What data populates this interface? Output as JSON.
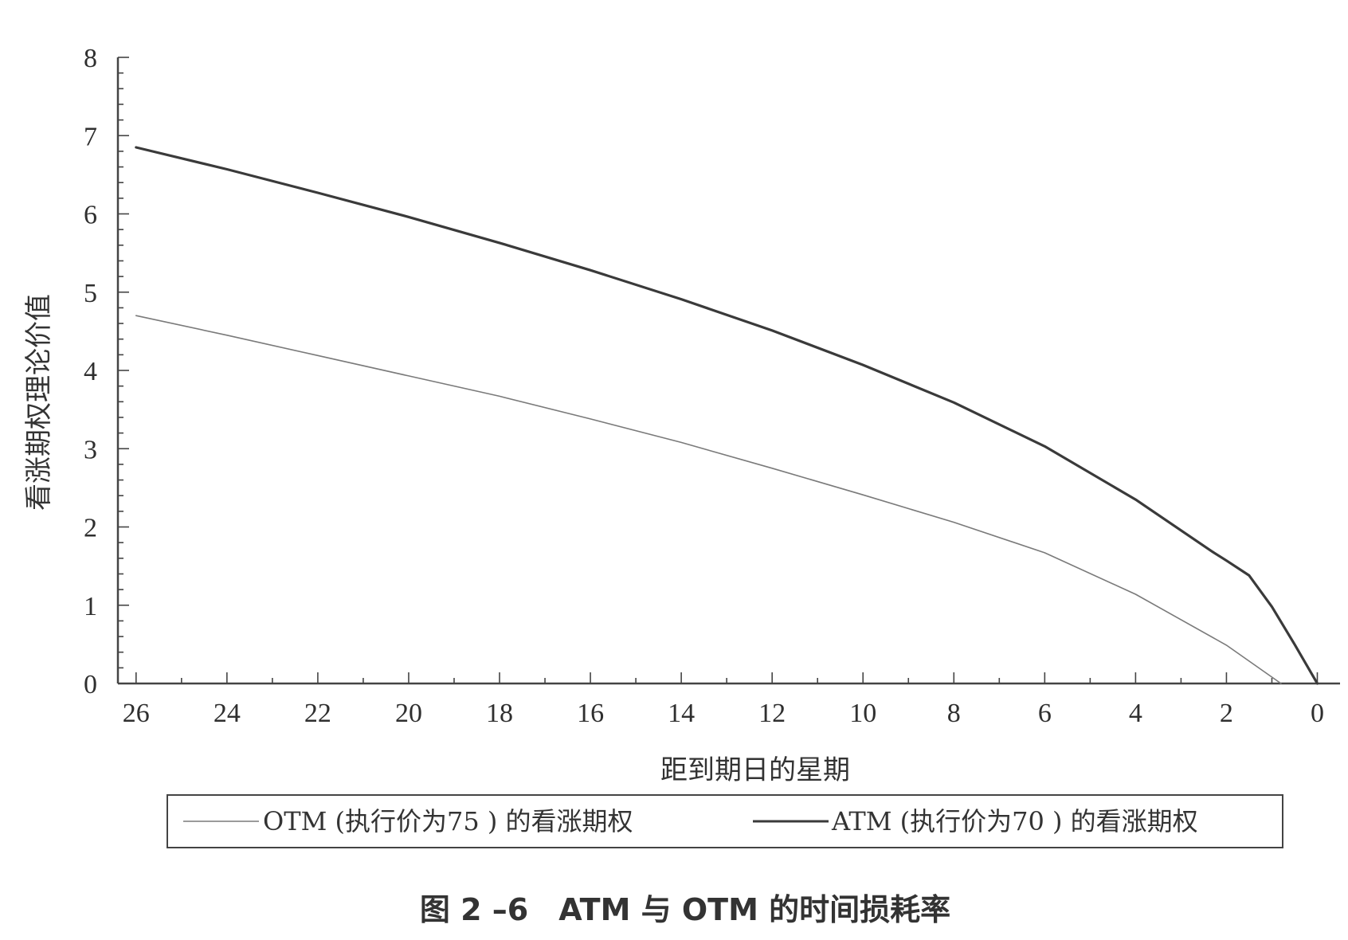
{
  "chart_data": {
    "type": "line",
    "xlabel": "距到期日的星期",
    "ylabel": "看涨期权理论价值",
    "xlim": [
      26.4,
      -0.5
    ],
    "ylim": [
      0,
      8
    ],
    "x_reversed": true,
    "x_ticks": [
      "26",
      "24",
      "22",
      "20",
      "18",
      "16",
      "14",
      "12",
      "10",
      "8",
      "6",
      "4",
      "2",
      "0"
    ],
    "y_ticks": [
      "0",
      "1",
      "2",
      "3",
      "4",
      "5",
      "6",
      "7",
      "8"
    ],
    "legend_position": "bottom",
    "grid": false,
    "series": [
      {
        "name": "OTM (执行价为75 ) 的看涨期权",
        "color": "#7a7a7a",
        "style": "thin",
        "points": [
          [
            26,
            4.7
          ],
          [
            24,
            4.45
          ],
          [
            22,
            4.19
          ],
          [
            20,
            3.93
          ],
          [
            18,
            3.67
          ],
          [
            16,
            3.38
          ],
          [
            14,
            3.08
          ],
          [
            12,
            2.75
          ],
          [
            10,
            2.41
          ],
          [
            8,
            2.06
          ],
          [
            6,
            1.67
          ],
          [
            4,
            1.14
          ],
          [
            2,
            0.49
          ],
          [
            0.8,
            0.0
          ]
        ]
      },
      {
        "name": "ATM (执行价为70 ) 的看涨期权",
        "color": "#3a3a3a",
        "style": "thick",
        "points": [
          [
            26,
            6.85
          ],
          [
            24,
            6.57
          ],
          [
            22,
            6.27
          ],
          [
            20,
            5.96
          ],
          [
            18,
            5.63
          ],
          [
            16,
            5.28
          ],
          [
            14,
            4.91
          ],
          [
            12,
            4.51
          ],
          [
            10,
            4.07
          ],
          [
            8,
            3.59
          ],
          [
            6,
            3.03
          ],
          [
            4,
            2.35
          ],
          [
            2.3,
            1.68
          ],
          [
            2.0,
            1.57
          ],
          [
            1.5,
            1.38
          ],
          [
            1.0,
            0.98
          ],
          [
            0.5,
            0.5
          ],
          [
            0,
            0.0
          ]
        ]
      }
    ],
    "caption": "图 2 –6　ATM 与 OTM 的时间损耗率"
  }
}
